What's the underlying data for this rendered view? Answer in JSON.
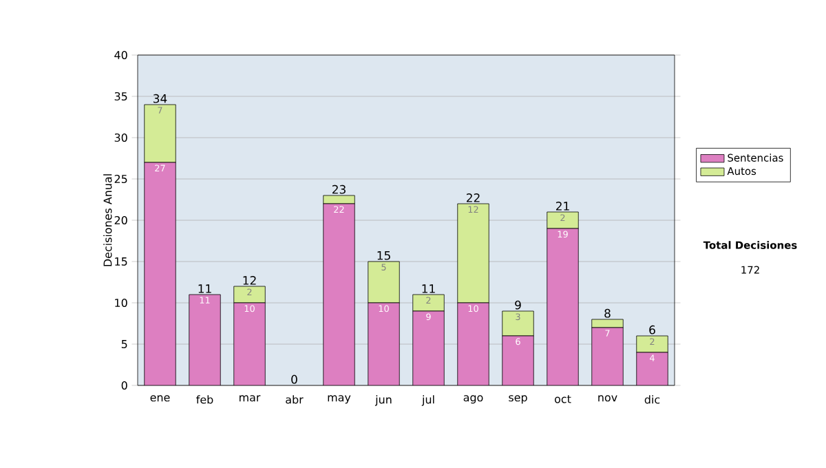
{
  "chart_data": {
    "type": "bar",
    "stacked": true,
    "ylabel": "Decisiones Anual",
    "categories": [
      "ene",
      "feb",
      "mar",
      "abr",
      "may",
      "jun",
      "jul",
      "ago",
      "sep",
      "oct",
      "nov",
      "dic"
    ],
    "series": [
      {
        "name": "Sentencias",
        "color": "#dd7fc1",
        "values": [
          27,
          11,
          10,
          0,
          22,
          10,
          9,
          10,
          6,
          19,
          7,
          4
        ],
        "value_labels": [
          "27",
          "11",
          "10",
          null,
          "22",
          "10",
          "9",
          "10",
          "6",
          "19",
          "7",
          "4"
        ]
      },
      {
        "name": "Autos",
        "color": "#d4eb96",
        "values": [
          7,
          0,
          2,
          0,
          1,
          5,
          2,
          12,
          3,
          2,
          1,
          2
        ],
        "value_labels": [
          "7",
          null,
          "2",
          null,
          null,
          "5",
          "2",
          "12",
          "3",
          "2",
          null,
          "2"
        ]
      }
    ],
    "totals": [
      "34",
      "11",
      "12",
      "0",
      "23",
      "15",
      "11",
      "22",
      "9",
      "21",
      "8",
      "6"
    ],
    "ylim": [
      0,
      40
    ],
    "yticks": [
      0,
      5,
      10,
      15,
      20,
      25,
      30,
      35,
      40
    ],
    "grid": "y",
    "legend": "right",
    "annotations": [
      "Total Decisiones",
      "172"
    ]
  }
}
